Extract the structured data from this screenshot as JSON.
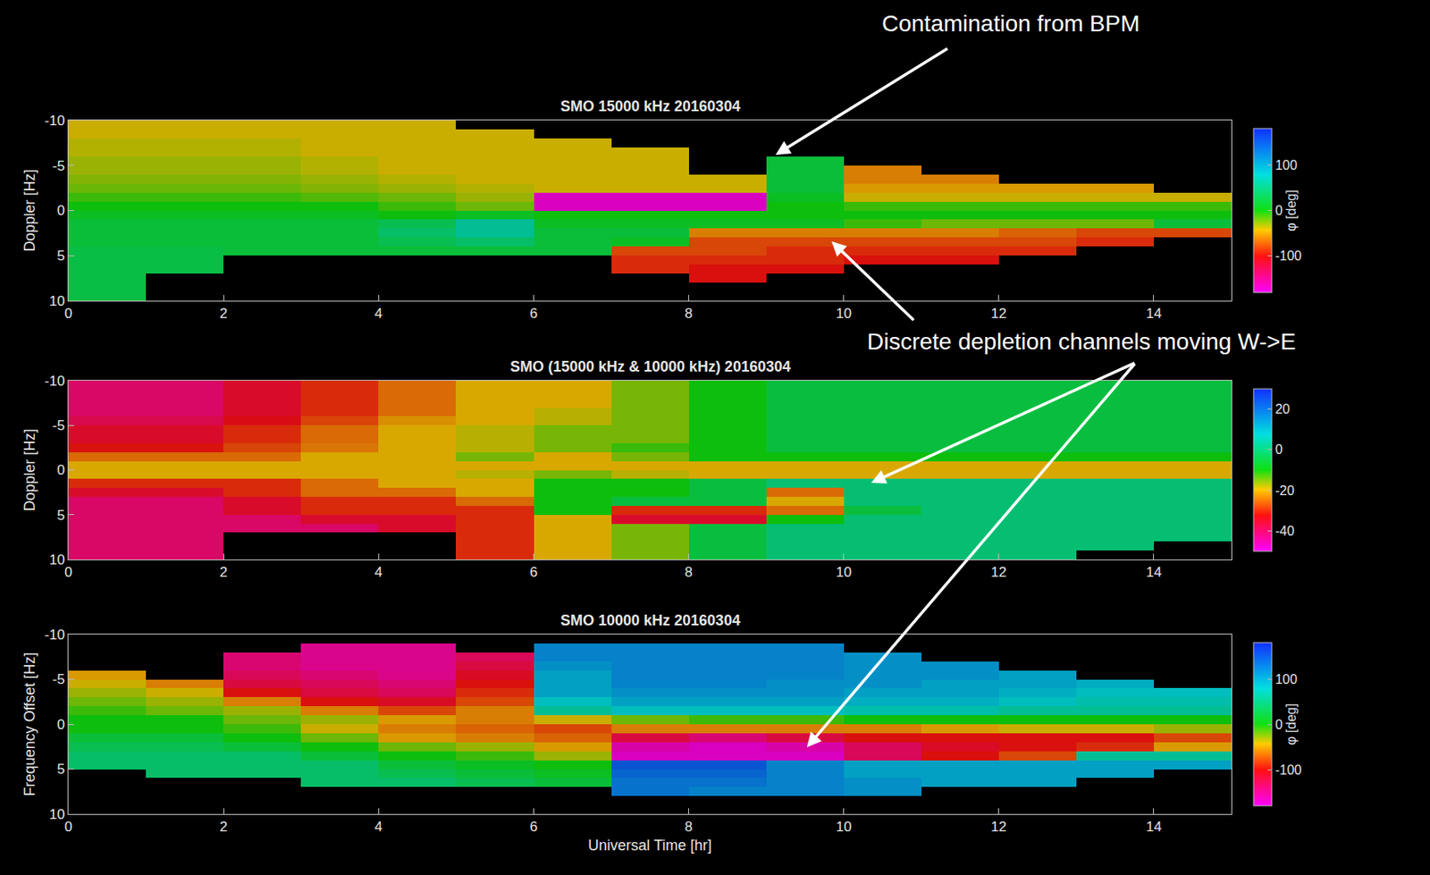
{
  "chart_data": [
    {
      "type": "heatmap",
      "title": "SMO 15000 kHz 20160304",
      "y_label": "Doppler [Hz]",
      "xlim": [
        0,
        15
      ],
      "xticks": [
        0,
        2,
        4,
        6,
        8,
        10,
        12,
        14
      ],
      "ylim": [
        10,
        -10
      ],
      "yticks": [
        -10,
        -5,
        0,
        5,
        10
      ],
      "colorbar": {
        "title": "φ [deg]",
        "range": [
          -180,
          180
        ],
        "ticks": [
          -100,
          0,
          100
        ]
      },
      "x": [
        0.5,
        1.5,
        2.5,
        3.5,
        4.5,
        5.5,
        6.5,
        7.5,
        8.5,
        9.5,
        10.5,
        11.5,
        12.5,
        13.5,
        14.5
      ],
      "y": [
        -9.5,
        -8.5,
        -7.5,
        -6.5,
        -5.5,
        -4.5,
        -3.5,
        -2.5,
        -1.5,
        -0.5,
        0.5,
        1.5,
        2.5,
        3.5,
        4.5,
        5.5,
        6.5,
        7.5,
        8.5,
        9.5
      ],
      "z": [
        [
          -40,
          -40,
          -40,
          -40,
          -40,
          null,
          null,
          null,
          null,
          null,
          null,
          null,
          null,
          null,
          null
        ],
        [
          -40,
          -40,
          -40,
          -40,
          -40,
          -40,
          null,
          null,
          null,
          null,
          null,
          null,
          null,
          null,
          null
        ],
        [
          -35,
          -35,
          -35,
          -40,
          -40,
          -40,
          -40,
          null,
          null,
          null,
          null,
          null,
          null,
          null,
          null
        ],
        [
          -35,
          -35,
          -35,
          -40,
          -40,
          -40,
          -40,
          -40,
          null,
          null,
          null,
          null,
          null,
          null,
          null
        ],
        [
          -30,
          -30,
          -30,
          -35,
          -40,
          -40,
          -40,
          -40,
          null,
          20,
          null,
          null,
          null,
          null,
          null
        ],
        [
          -30,
          -30,
          -30,
          -35,
          -40,
          -40,
          -40,
          -40,
          null,
          20,
          -60,
          null,
          null,
          null,
          null
        ],
        [
          -25,
          -25,
          -25,
          -30,
          -35,
          -40,
          -40,
          -40,
          -40,
          20,
          -60,
          -60,
          null,
          null,
          null
        ],
        [
          -20,
          -20,
          -20,
          -25,
          -30,
          -35,
          -40,
          -40,
          -40,
          20,
          -50,
          -50,
          -50,
          -50,
          null
        ],
        [
          -10,
          -10,
          -10,
          -15,
          -20,
          -30,
          -170,
          -170,
          -170,
          10,
          -40,
          -40,
          -40,
          -40,
          -40
        ],
        [
          0,
          0,
          0,
          0,
          -10,
          -20,
          -170,
          -170,
          -170,
          0,
          -10,
          -10,
          -10,
          -10,
          -10
        ],
        [
          10,
          10,
          10,
          10,
          0,
          10,
          0,
          0,
          0,
          0,
          0,
          0,
          0,
          0,
          0
        ],
        [
          20,
          20,
          20,
          20,
          30,
          60,
          10,
          10,
          10,
          10,
          -10,
          -20,
          -20,
          -20,
          20
        ],
        [
          20,
          20,
          20,
          20,
          40,
          60,
          20,
          20,
          -60,
          -60,
          -60,
          -60,
          -70,
          -80,
          -80
        ],
        [
          20,
          20,
          20,
          20,
          30,
          40,
          20,
          10,
          -80,
          -80,
          -80,
          -80,
          -80,
          -90,
          null
        ],
        [
          25,
          25,
          20,
          20,
          20,
          20,
          20,
          -80,
          -80,
          -90,
          -90,
          -90,
          -90,
          null,
          null
        ],
        [
          25,
          25,
          null,
          null,
          null,
          null,
          null,
          -90,
          -90,
          -90,
          -100,
          -100,
          null,
          null,
          null
        ],
        [
          25,
          25,
          null,
          null,
          null,
          null,
          null,
          -90,
          -100,
          -100,
          null,
          null,
          null,
          null,
          null
        ],
        [
          25,
          null,
          null,
          null,
          null,
          null,
          null,
          null,
          -100,
          null,
          null,
          null,
          null,
          null,
          null
        ],
        [
          25,
          null,
          null,
          null,
          null,
          null,
          null,
          null,
          null,
          null,
          null,
          null,
          null,
          null,
          null
        ],
        [
          25,
          null,
          null,
          null,
          null,
          null,
          null,
          null,
          null,
          null,
          null,
          null,
          null,
          null,
          null
        ]
      ]
    },
    {
      "type": "heatmap",
      "title": "SMO (15000 kHz & 10000 kHz) 20160304",
      "y_label": "Doppler [Hz]",
      "xlim": [
        0,
        15
      ],
      "xticks": [
        0,
        2,
        4,
        6,
        8,
        10,
        12,
        14
      ],
      "ylim": [
        10,
        -10
      ],
      "yticks": [
        -10,
        -5,
        0,
        5,
        10
      ],
      "colorbar": {
        "range": [
          -50,
          30
        ],
        "ticks": [
          -40,
          -20,
          0,
          20
        ]
      },
      "x": [
        0.5,
        1.5,
        2.5,
        3.5,
        4.5,
        5.5,
        6.5,
        7.5,
        8.5,
        9.5,
        10.5,
        11.5,
        12.5,
        13.5,
        14.5
      ],
      "y": [
        -9.5,
        -8.5,
        -7.5,
        -6.5,
        -5.5,
        -4.5,
        -3.5,
        -2.5,
        -1.5,
        -0.5,
        0.5,
        1.5,
        2.5,
        3.5,
        4.5,
        5.5,
        6.5,
        7.5,
        8.5,
        9.5
      ],
      "z": [
        [
          -40,
          -40,
          -35,
          -30,
          -25,
          -20,
          -20,
          -15,
          -10,
          -5,
          -5,
          -5,
          -5,
          -5,
          -5
        ],
        [
          -40,
          -40,
          -35,
          -30,
          -25,
          -20,
          -20,
          -15,
          -10,
          -5,
          -5,
          -5,
          -5,
          -5,
          -5
        ],
        [
          -40,
          -40,
          -35,
          -30,
          -25,
          -20,
          -20,
          -15,
          -10,
          -5,
          -5,
          -5,
          -5,
          -5,
          -5
        ],
        [
          -40,
          -40,
          -35,
          -30,
          -25,
          -20,
          -18,
          -15,
          -10,
          -5,
          -5,
          -5,
          -5,
          -5,
          -5
        ],
        [
          -38,
          -38,
          -33,
          -28,
          -22,
          -20,
          -18,
          -15,
          -10,
          -5,
          -5,
          -5,
          -5,
          -5,
          -5
        ],
        [
          -35,
          -35,
          -30,
          -25,
          -20,
          -18,
          -15,
          -15,
          -10,
          -5,
          -5,
          -5,
          -5,
          -5,
          -5
        ],
        [
          -35,
          -35,
          -30,
          -25,
          -20,
          -18,
          -15,
          -15,
          -10,
          -5,
          -5,
          -5,
          -5,
          -5,
          -5
        ],
        [
          -32,
          -32,
          -28,
          -24,
          -20,
          -18,
          -15,
          -12,
          -10,
          -5,
          -5,
          -5,
          -5,
          -5,
          -5
        ],
        [
          -25,
          -25,
          -25,
          -20,
          -20,
          -15,
          -20,
          -15,
          -10,
          -10,
          -10,
          -10,
          -10,
          -10,
          -10
        ],
        [
          -20,
          -20,
          -20,
          -20,
          -20,
          -20,
          -20,
          -20,
          -20,
          -20,
          -20,
          -20,
          -20,
          -20,
          -20
        ],
        [
          -20,
          -20,
          -20,
          -20,
          -20,
          -18,
          -15,
          -18,
          -20,
          -20,
          -20,
          -20,
          -20,
          -20,
          -20
        ],
        [
          -30,
          -30,
          -30,
          -25,
          -20,
          -20,
          -10,
          -10,
          -5,
          0,
          0,
          0,
          0,
          0,
          0
        ],
        [
          -35,
          -35,
          -30,
          -25,
          -25,
          -20,
          -10,
          -10,
          -5,
          -25,
          0,
          0,
          0,
          0,
          0
        ],
        [
          -40,
          -40,
          -35,
          -30,
          -30,
          -25,
          -10,
          -5,
          -5,
          -20,
          0,
          0,
          0,
          0,
          0
        ],
        [
          -40,
          -40,
          -35,
          -30,
          -30,
          -30,
          -10,
          -30,
          -30,
          -25,
          -5,
          0,
          0,
          0,
          0
        ],
        [
          -40,
          -40,
          -40,
          -35,
          -35,
          -30,
          -20,
          -35,
          -35,
          -10,
          0,
          0,
          0,
          0,
          0
        ],
        [
          -40,
          -40,
          -40,
          -40,
          -35,
          -30,
          -20,
          -15,
          -5,
          0,
          0,
          0,
          0,
          0,
          0
        ],
        [
          -40,
          -40,
          null,
          null,
          null,
          -30,
          -20,
          -15,
          -5,
          0,
          0,
          0,
          0,
          0,
          0
        ],
        [
          -40,
          -40,
          null,
          null,
          null,
          -30,
          -20,
          -15,
          -5,
          0,
          0,
          0,
          0,
          0,
          null
        ],
        [
          -40,
          -40,
          null,
          null,
          null,
          -30,
          -20,
          -15,
          -5,
          0,
          0,
          0,
          0,
          null,
          null
        ]
      ]
    },
    {
      "type": "heatmap",
      "title": "SMO 10000 kHz 20160304",
      "y_label": "Frequency Offset [Hz]",
      "x_label": "Universal Time [hr]",
      "xlim": [
        0,
        15
      ],
      "xticks": [
        0,
        2,
        4,
        6,
        8,
        10,
        12,
        14
      ],
      "ylim": [
        10,
        -10
      ],
      "yticks": [
        -10,
        -5,
        0,
        5,
        10
      ],
      "colorbar": {
        "title": "φ [deg]",
        "range": [
          -180,
          180
        ],
        "ticks": [
          -100,
          0,
          100
        ]
      },
      "x": [
        0.5,
        1.5,
        2.5,
        3.5,
        4.5,
        5.5,
        6.5,
        7.5,
        8.5,
        9.5,
        10.5,
        11.5,
        12.5,
        13.5,
        14.5
      ],
      "y": [
        -9.5,
        -8.5,
        -7.5,
        -6.5,
        -5.5,
        -4.5,
        -3.5,
        -2.5,
        -1.5,
        -0.5,
        0.5,
        1.5,
        2.5,
        3.5,
        4.5,
        5.5,
        6.5,
        7.5,
        8.5,
        9.5
      ],
      "z": [
        [
          null,
          null,
          null,
          null,
          null,
          null,
          null,
          null,
          null,
          null,
          null,
          null,
          null,
          null,
          null
        ],
        [
          null,
          null,
          null,
          -150,
          -150,
          null,
          120,
          120,
          120,
          120,
          null,
          null,
          null,
          null,
          null
        ],
        [
          null,
          null,
          -140,
          -150,
          -150,
          -130,
          120,
          120,
          120,
          120,
          110,
          null,
          null,
          null,
          null
        ],
        [
          null,
          null,
          -140,
          -150,
          -150,
          -120,
          110,
          120,
          120,
          120,
          110,
          110,
          null,
          null,
          null
        ],
        [
          -50,
          null,
          -130,
          -140,
          -150,
          -110,
          100,
          120,
          120,
          120,
          110,
          110,
          100,
          null,
          null
        ],
        [
          -40,
          -60,
          -120,
          -130,
          -140,
          -100,
          100,
          120,
          120,
          110,
          110,
          100,
          100,
          90,
          null
        ],
        [
          -30,
          -40,
          -100,
          -120,
          -130,
          -90,
          100,
          110,
          110,
          110,
          100,
          100,
          90,
          80,
          80
        ],
        [
          -20,
          -30,
          -60,
          -100,
          -110,
          -80,
          80,
          100,
          100,
          100,
          90,
          90,
          80,
          70,
          70
        ],
        [
          -10,
          -20,
          -30,
          -60,
          -80,
          -60,
          60,
          80,
          80,
          80,
          70,
          70,
          60,
          60,
          60
        ],
        [
          0,
          0,
          -20,
          -30,
          -50,
          -60,
          -40,
          -20,
          -10,
          -10,
          0,
          0,
          0,
          0,
          0
        ],
        [
          0,
          0,
          -10,
          -40,
          -60,
          -70,
          -80,
          -60,
          -60,
          -60,
          -60,
          -50,
          -40,
          -40,
          -30
        ],
        [
          20,
          20,
          0,
          -20,
          -50,
          -60,
          -70,
          -120,
          -140,
          -120,
          -100,
          -100,
          -100,
          -100,
          -80
        ],
        [
          30,
          30,
          20,
          0,
          -20,
          -30,
          -50,
          -160,
          -170,
          -160,
          -130,
          -110,
          -100,
          -90,
          -50
        ],
        [
          40,
          40,
          40,
          20,
          0,
          -10,
          -30,
          -170,
          -170,
          -170,
          -130,
          -100,
          -80,
          60,
          60
        ],
        [
          40,
          40,
          40,
          40,
          20,
          10,
          0,
          150,
          150,
          120,
          100,
          100,
          100,
          100,
          100
        ],
        [
          null,
          40,
          40,
          40,
          30,
          20,
          10,
          140,
          140,
          120,
          100,
          100,
          100,
          100,
          null
        ],
        [
          null,
          null,
          null,
          40,
          40,
          30,
          20,
          130,
          130,
          120,
          110,
          100,
          100,
          null,
          null
        ],
        [
          null,
          null,
          null,
          null,
          null,
          null,
          null,
          130,
          120,
          120,
          110,
          null,
          null,
          null,
          null
        ],
        [
          null,
          null,
          null,
          null,
          null,
          null,
          null,
          null,
          null,
          null,
          null,
          null,
          null,
          null,
          null
        ],
        [
          null,
          null,
          null,
          null,
          null,
          null,
          null,
          null,
          null,
          null,
          null,
          null,
          null,
          null,
          null
        ]
      ]
    }
  ],
  "annotations": [
    "Contamination from BPM",
    "Discrete depletion channels moving W->E"
  ]
}
